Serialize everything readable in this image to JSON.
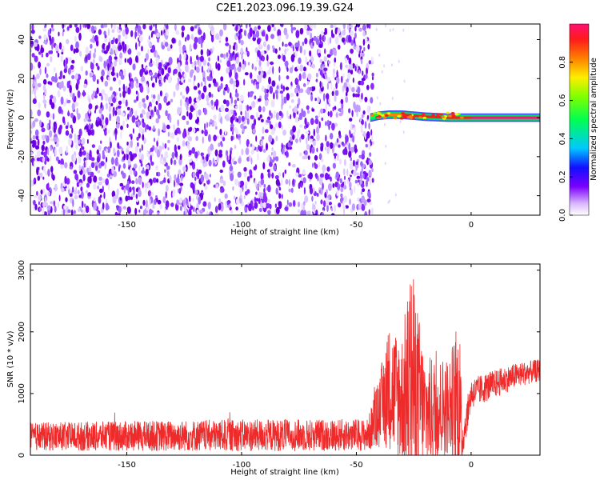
{
  "title": "C2E1.2023.096.19.39.G24",
  "chart_data": [
    {
      "type": "heatmap",
      "xlabel": "Height of straight line (km)",
      "ylabel": "Frequency (Hz)",
      "xlim": [
        -192,
        30
      ],
      "ylim": [
        -50,
        48
      ],
      "xticks": [
        -150,
        -100,
        -50,
        0
      ],
      "yticks": [
        -40,
        -20,
        0,
        20,
        40
      ],
      "noise_region_x": [
        -192,
        -42
      ],
      "signal_track": [
        {
          "x": -44,
          "freq": 0.0,
          "amp": 0.55
        },
        {
          "x": -40,
          "freq": 1.0,
          "amp": 0.75
        },
        {
          "x": -36,
          "freq": 1.5,
          "amp": 0.9
        },
        {
          "x": -30,
          "freq": 1.5,
          "amp": 0.95
        },
        {
          "x": -25,
          "freq": 1.0,
          "amp": 0.95
        },
        {
          "x": -20,
          "freq": 0.5,
          "amp": 0.95
        },
        {
          "x": -10,
          "freq": 0.0,
          "amp": 0.95
        },
        {
          "x": 0,
          "freq": 0.0,
          "amp": 1.0
        },
        {
          "x": 10,
          "freq": 0.0,
          "amp": 1.0
        },
        {
          "x": 20,
          "freq": 0.0,
          "amp": 1.0
        },
        {
          "x": 30,
          "freq": 0.0,
          "amp": 1.0
        }
      ],
      "colorbar": {
        "label": "Normalized spectral amplitude",
        "ticks": [
          "0.0",
          "0.2",
          "0.4",
          "0.6",
          "0.8"
        ],
        "range": [
          0,
          1
        ]
      }
    },
    {
      "type": "line",
      "xlabel": "Height of straight line (km)",
      "ylabel": "SNR (10 * v/v)",
      "xlim": [
        -192,
        30
      ],
      "ylim": [
        0,
        3100
      ],
      "xticks": [
        -150,
        -100,
        -50,
        0
      ],
      "yticks": [
        0,
        1000,
        2000,
        3000
      ],
      "color": "#ee2a2a",
      "envelope": [
        {
          "x": -192,
          "base": 300,
          "amp": 230
        },
        {
          "x": -100,
          "base": 320,
          "amp": 260
        },
        {
          "x": -45,
          "base": 330,
          "amp": 260
        },
        {
          "x": -40,
          "base": 700,
          "amp": 600
        },
        {
          "x": -36,
          "base": 1100,
          "amp": 1000
        },
        {
          "x": -30,
          "base": 900,
          "amp": 1100
        },
        {
          "x": -26,
          "base": 1200,
          "amp": 1900
        },
        {
          "x": -20,
          "base": 700,
          "amp": 900
        },
        {
          "x": -10,
          "base": 800,
          "amp": 800
        },
        {
          "x": -5,
          "base": 900,
          "amp": 1300
        },
        {
          "x": -4,
          "base": 200,
          "amp": 300
        },
        {
          "x": 0,
          "base": 1000,
          "amp": 250
        },
        {
          "x": 10,
          "base": 1150,
          "amp": 230
        },
        {
          "x": 20,
          "base": 1300,
          "amp": 200
        },
        {
          "x": 30,
          "base": 1380,
          "amp": 180
        }
      ]
    }
  ]
}
